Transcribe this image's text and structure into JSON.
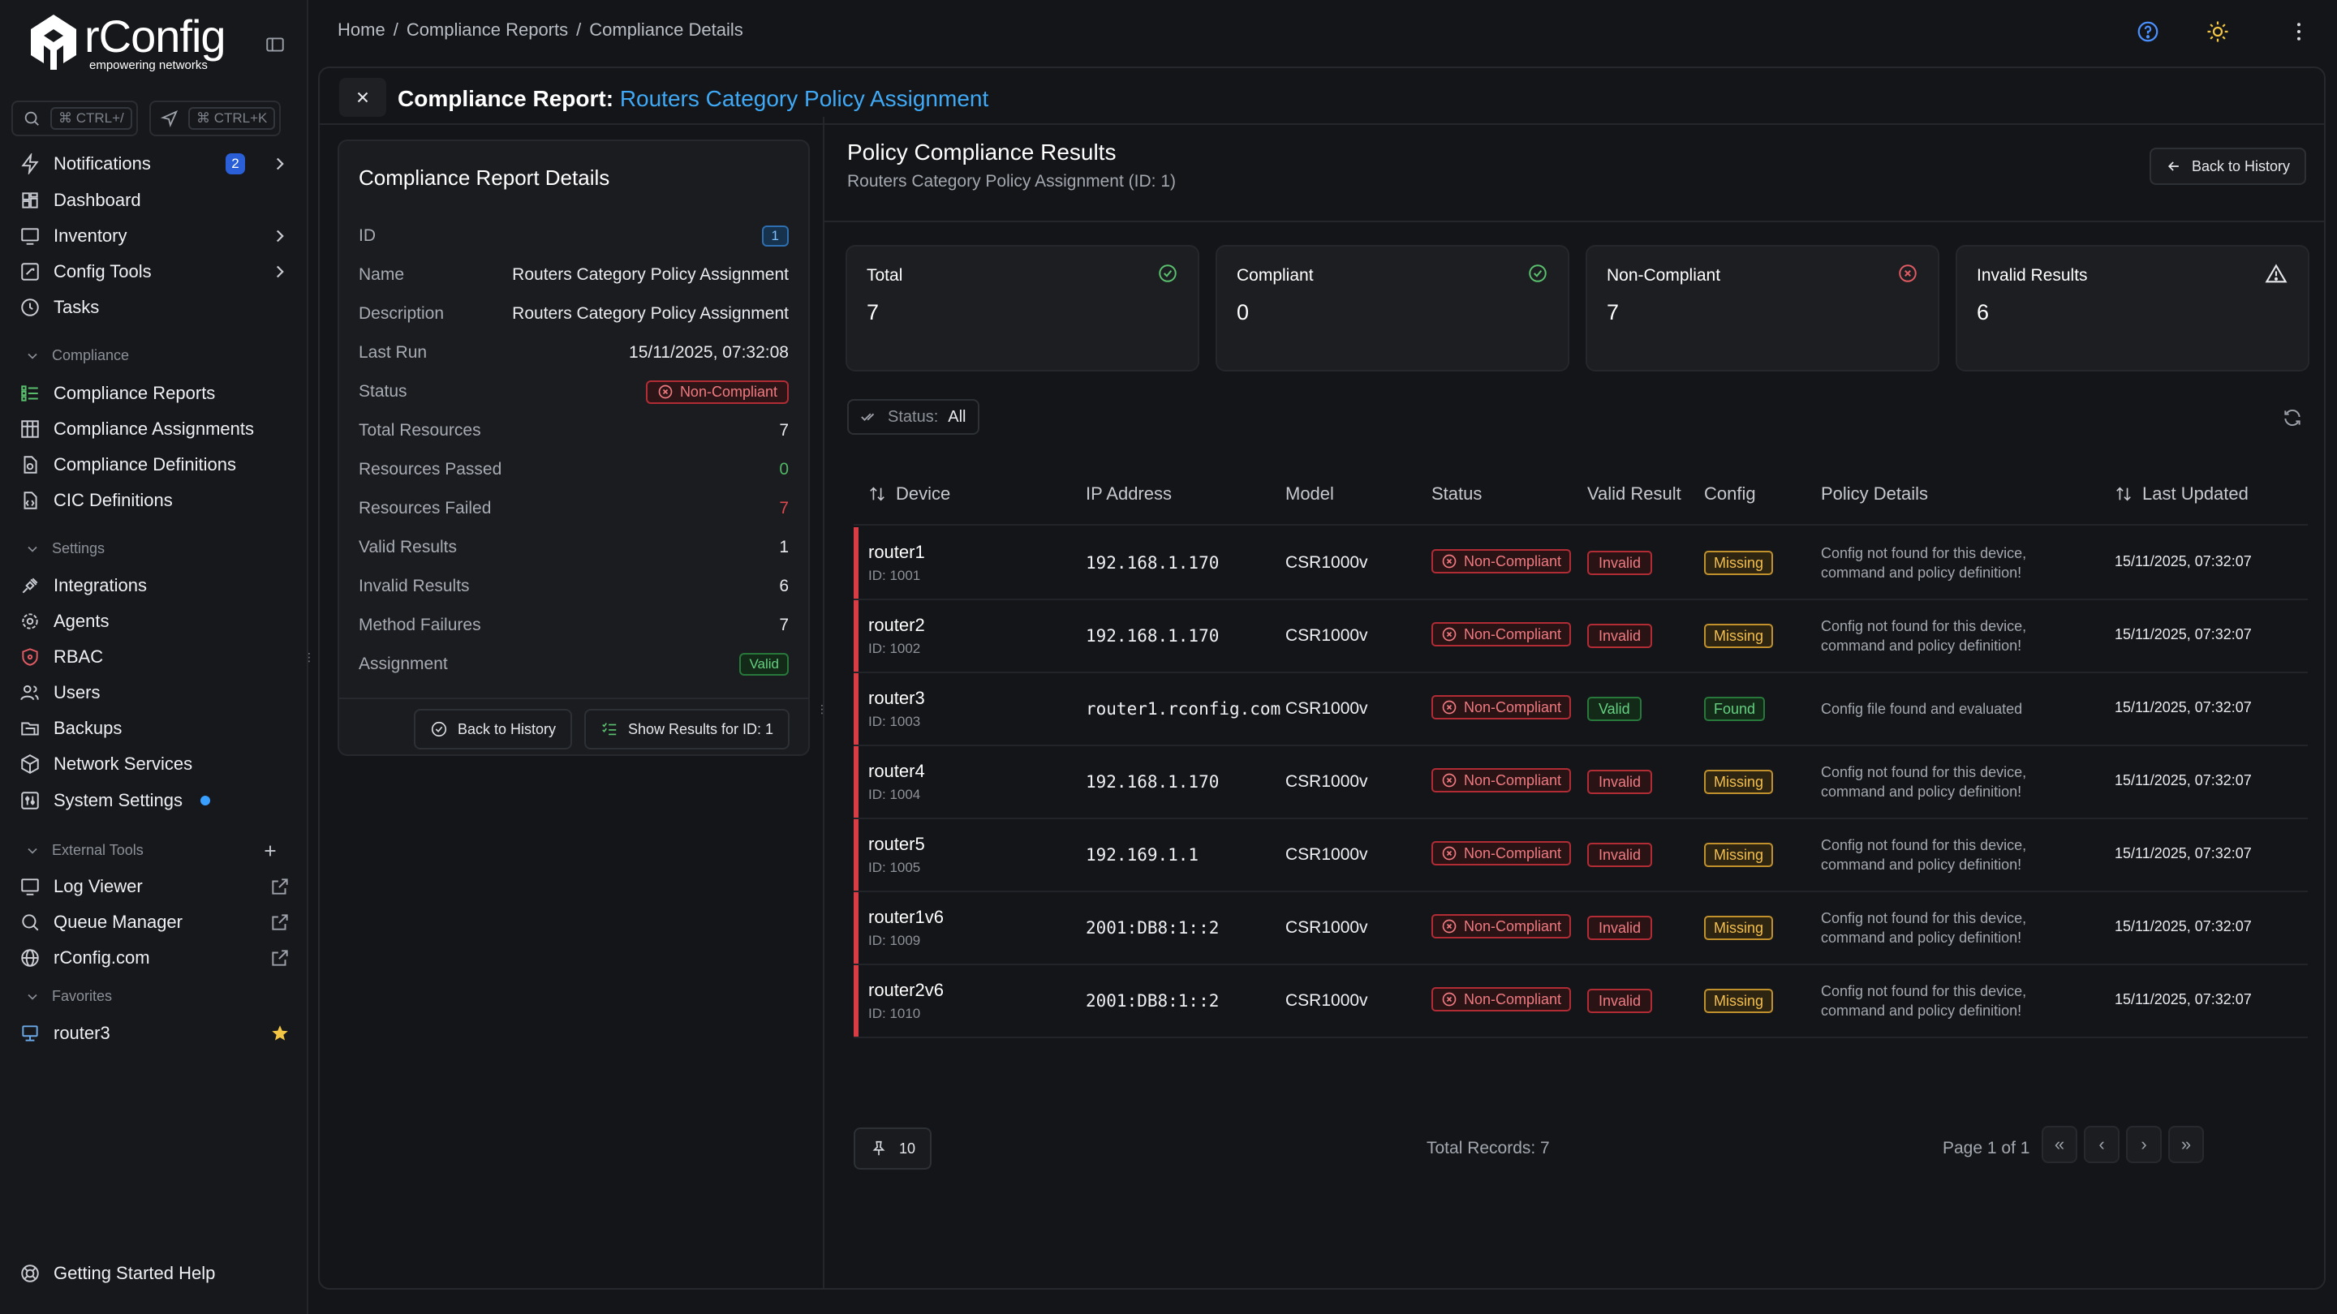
{
  "brand": {
    "name": "rConfig",
    "tagline": "empowering networks"
  },
  "search": {
    "shortcut": "⌘ CTRL+/",
    "command_shortcut": "⌘ CTRL+K"
  },
  "sidebar": {
    "items": [
      {
        "label": "Notifications",
        "badge": "2",
        "icon": "bolt-icon"
      },
      {
        "label": "Dashboard",
        "icon": "grid-icon"
      },
      {
        "label": "Inventory",
        "icon": "monitor-icon"
      },
      {
        "label": "Config Tools",
        "icon": "tools-icon"
      },
      {
        "label": "Tasks",
        "icon": "clock-icon"
      }
    ],
    "compliance_heading": "Compliance",
    "compliance": [
      {
        "label": "Compliance Reports"
      },
      {
        "label": "Compliance Assignments"
      },
      {
        "label": "Compliance Definitions"
      },
      {
        "label": "CIC Definitions"
      }
    ],
    "settings_heading": "Settings",
    "settings": [
      {
        "label": "Integrations"
      },
      {
        "label": "Agents"
      },
      {
        "label": "RBAC"
      },
      {
        "label": "Users"
      },
      {
        "label": "Backups"
      },
      {
        "label": "Network Services"
      },
      {
        "label": "System Settings"
      }
    ],
    "external_heading": "External Tools",
    "external": [
      {
        "label": "Log Viewer"
      },
      {
        "label": "Queue Manager"
      },
      {
        "label": "rConfig.com"
      }
    ],
    "favorites_heading": "Favorites",
    "favorites": [
      {
        "label": "router3"
      }
    ],
    "help": "Getting Started Help"
  },
  "breadcrumb": {
    "home": "Home",
    "reports": "Compliance Reports",
    "current": "Compliance Details",
    "sep": "/"
  },
  "header": {
    "title_prefix": "Compliance Report:",
    "title_link": "Routers Category Policy Assignment"
  },
  "details": {
    "title": "Compliance Report Details",
    "id_label": "ID",
    "id": "1",
    "name_label": "Name",
    "name": "Routers Category Policy Assignment",
    "description_label": "Description",
    "description": "Routers Category Policy Assignment",
    "last_run_label": "Last Run",
    "last_run": "15/11/2025, 07:32:08",
    "status_label": "Status",
    "status": "Non-Compliant",
    "total_label": "Total Resources",
    "total": "7",
    "passed_label": "Resources Passed",
    "passed": "0",
    "failed_label": "Resources Failed",
    "failed": "7",
    "valid_label": "Valid Results",
    "valid": "1",
    "invalid_label": "Invalid Results",
    "invalid": "6",
    "method_label": "Method Failures",
    "method": "7",
    "assignment_label": "Assignment",
    "assignment": "Valid",
    "back_button": "Back to History",
    "show_button": "Show Results for ID: 1"
  },
  "results": {
    "title": "Policy Compliance Results",
    "subtitle": "Routers Category Policy Assignment (ID: 1)",
    "back_button": "Back to History",
    "stats": [
      {
        "label": "Total",
        "value": "7",
        "icon": "check-circle-icon",
        "color": "#5ac26e"
      },
      {
        "label": "Compliant",
        "value": "0",
        "icon": "check-circle-icon",
        "color": "#5ac26e"
      },
      {
        "label": "Non-Compliant",
        "value": "7",
        "icon": "x-circle-icon",
        "color": "#e25b63"
      },
      {
        "label": "Invalid Results",
        "value": "6",
        "icon": "warning-icon",
        "color": "#e7e9ed"
      }
    ],
    "filter": {
      "label": "Status:",
      "value": "All"
    },
    "columns": {
      "device": "Device",
      "ip": "IP Address",
      "model": "Model",
      "status": "Status",
      "valid": "Valid Result",
      "config": "Config",
      "details": "Policy Details",
      "updated": "Last Updated"
    },
    "rows": [
      {
        "device": "router1",
        "id": "ID: 1001",
        "ip": "192.168.1.170",
        "model": "CSR1000v",
        "status": "Non-Compliant",
        "valid": "Invalid",
        "config": "Missing",
        "details": "Config not found for this device, command and policy definition!",
        "updated": "15/11/2025, 07:32:07"
      },
      {
        "device": "router2",
        "id": "ID: 1002",
        "ip": "192.168.1.170",
        "model": "CSR1000v",
        "status": "Non-Compliant",
        "valid": "Invalid",
        "config": "Missing",
        "details": "Config not found for this device, command and policy definition!",
        "updated": "15/11/2025, 07:32:07"
      },
      {
        "device": "router3",
        "id": "ID: 1003",
        "ip": "router1.rconfig.com",
        "model": "CSR1000v",
        "status": "Non-Compliant",
        "valid": "Valid",
        "config": "Found",
        "details": "Config file found and evaluated",
        "updated": "15/11/2025, 07:32:07"
      },
      {
        "device": "router4",
        "id": "ID: 1004",
        "ip": "192.168.1.170",
        "model": "CSR1000v",
        "status": "Non-Compliant",
        "valid": "Invalid",
        "config": "Missing",
        "details": "Config not found for this device, command and policy definition!",
        "updated": "15/11/2025, 07:32:07"
      },
      {
        "device": "router5",
        "id": "ID: 1005",
        "ip": "192.169.1.1",
        "model": "CSR1000v",
        "status": "Non-Compliant",
        "valid": "Invalid",
        "config": "Missing",
        "details": "Config not found for this device, command and policy definition!",
        "updated": "15/11/2025, 07:32:07"
      },
      {
        "device": "router1v6",
        "id": "ID: 1009",
        "ip": "2001:DB8:1::2",
        "model": "CSR1000v",
        "status": "Non-Compliant",
        "valid": "Invalid",
        "config": "Missing",
        "details": "Config not found for this device, command and policy definition!",
        "updated": "15/11/2025, 07:32:07"
      },
      {
        "device": "router2v6",
        "id": "ID: 1010",
        "ip": "2001:DB8:1::2",
        "model": "CSR1000v",
        "status": "Non-Compliant",
        "valid": "Invalid",
        "config": "Missing",
        "details": "Config not found for this device, command and policy definition!",
        "updated": "15/11/2025, 07:32:07"
      }
    ],
    "page_size": "10",
    "total_records": "Total Records: 7",
    "page_info": "Page 1 of 1"
  }
}
